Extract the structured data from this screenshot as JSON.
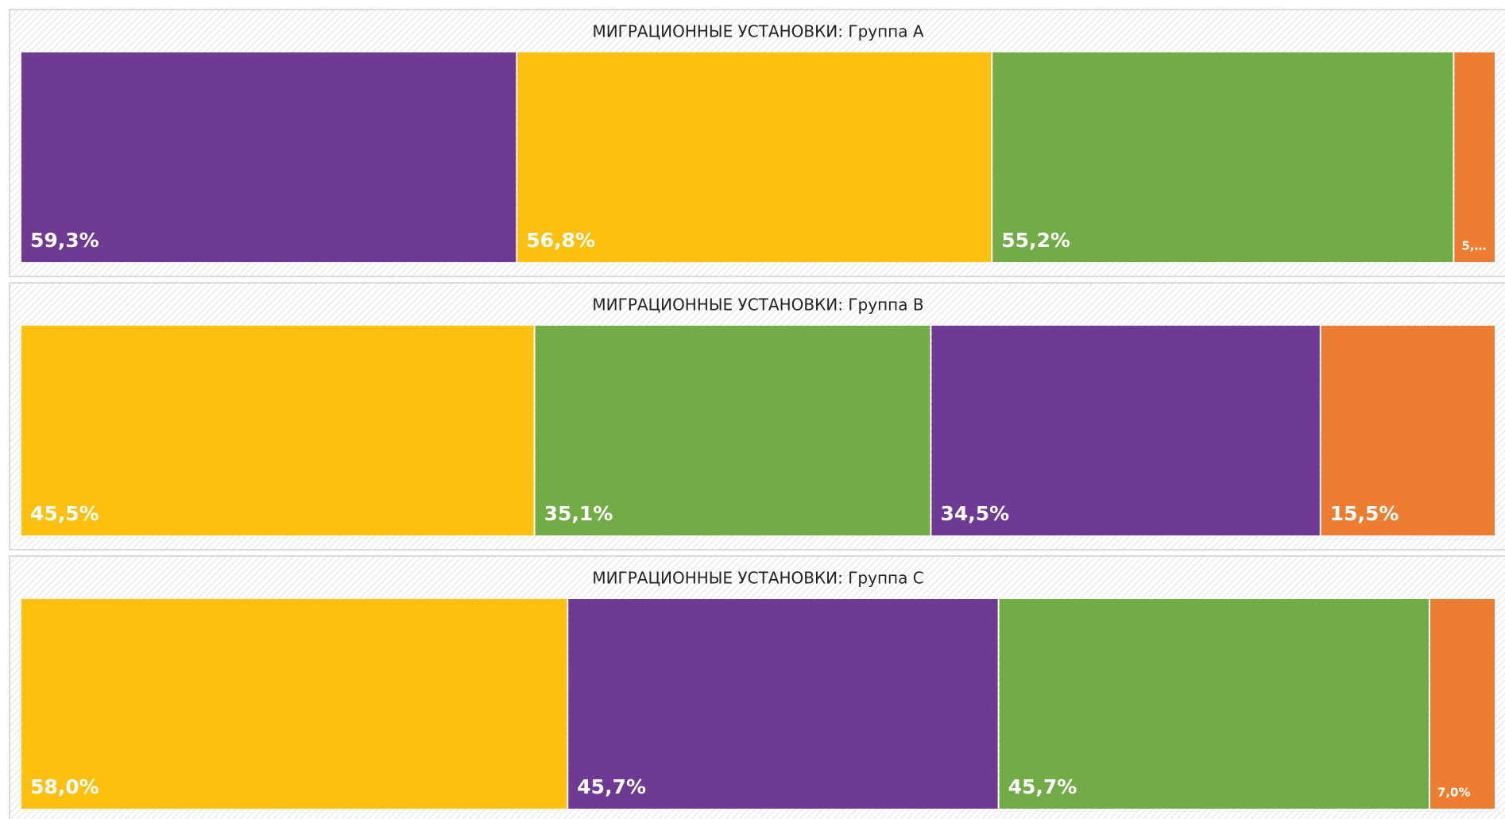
{
  "chart_data": [
    {
      "type": "treemap",
      "title": "МИГРАЦИОННЫЕ УСТАНОВКИ: Группа А",
      "values": [
        59.3,
        56.8,
        55.2,
        5.0
      ],
      "value_labels": [
        "59,3%",
        "56,8%",
        "55,2%",
        "5,…"
      ],
      "colors": [
        "#6f3a93",
        "#fdc010",
        "#72ac47",
        "#ed7d31"
      ]
    },
    {
      "type": "treemap",
      "title": "МИГРАЦИОННЫЕ УСТАНОВКИ: Группа В",
      "values": [
        45.5,
        35.1,
        34.5,
        15.5
      ],
      "value_labels": [
        "45,5%",
        "35,1%",
        "34,5%",
        "15,5%"
      ],
      "colors": [
        "#fdc010",
        "#72ac47",
        "#6f3a93",
        "#ed7d31"
      ]
    },
    {
      "type": "treemap",
      "title": "МИГРАЦИОННЫЕ УСТАНОВКИ: Группа С",
      "values": [
        58.0,
        45.7,
        45.7,
        7.0
      ],
      "value_labels": [
        "58,0%",
        "45,7%",
        "45,7%",
        "7,0%"
      ],
      "colors": [
        "#fdc010",
        "#6f3a93",
        "#72ac47",
        "#ed7d31"
      ]
    }
  ]
}
